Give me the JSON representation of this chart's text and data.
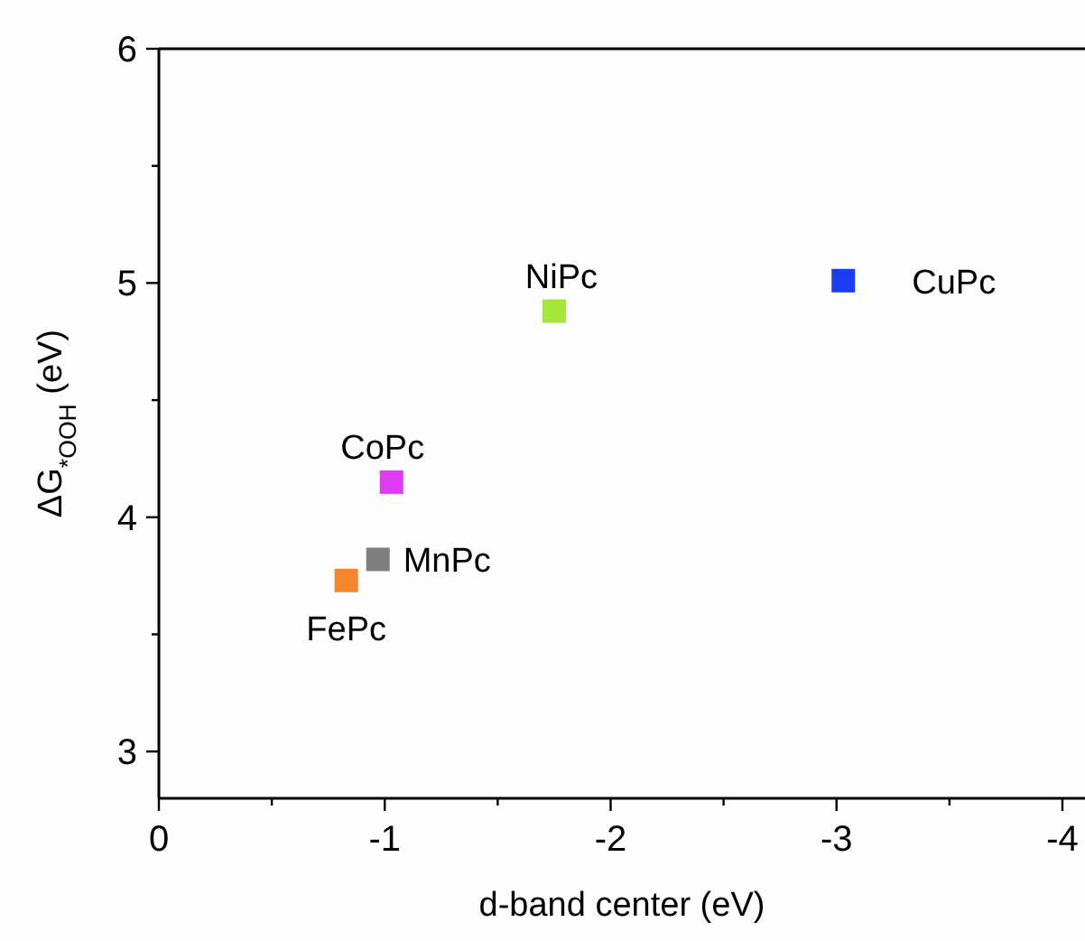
{
  "chart_data": {
    "type": "scatter",
    "xlabel": "d-band center (eV)",
    "ylabel": "ΔG$_{*OOH}$ (eV)",
    "marker": "square",
    "xlim": [
      0,
      -4.1
    ],
    "ylim": [
      2.8,
      6
    ],
    "xticks": [
      0,
      {
        "value": -0.5,
        "label": null
      },
      -1,
      {
        "value": -1.5,
        "label": null
      },
      -2,
      {
        "value": -2.5,
        "label": null
      },
      -3,
      {
        "value": -3.5,
        "label": null
      },
      -4
    ],
    "yticks": [
      3,
      {
        "value": 3.5,
        "label": null
      },
      4,
      {
        "value": 4.5,
        "label": null
      },
      5,
      {
        "value": 5.5,
        "label": null
      },
      6
    ],
    "series": [
      {
        "name": "FePc",
        "color": "#f5862a",
        "x": [
          -0.83
        ],
        "values": [
          3.73
        ]
      },
      {
        "name": "MnPc",
        "color": "#7f7f7f",
        "x": [
          -0.97
        ],
        "values": [
          3.82
        ]
      },
      {
        "name": "CoPc",
        "color": "#de3bf5",
        "x": [
          -1.03
        ],
        "values": [
          4.15
        ]
      },
      {
        "name": "NiPc",
        "color": "#a5e636",
        "x": [
          -1.75
        ],
        "values": [
          4.88
        ]
      },
      {
        "name": "CuPc",
        "color": "#1a3cf5",
        "x": [
          -3.03
        ],
        "values": [
          5.01
        ]
      }
    ]
  }
}
